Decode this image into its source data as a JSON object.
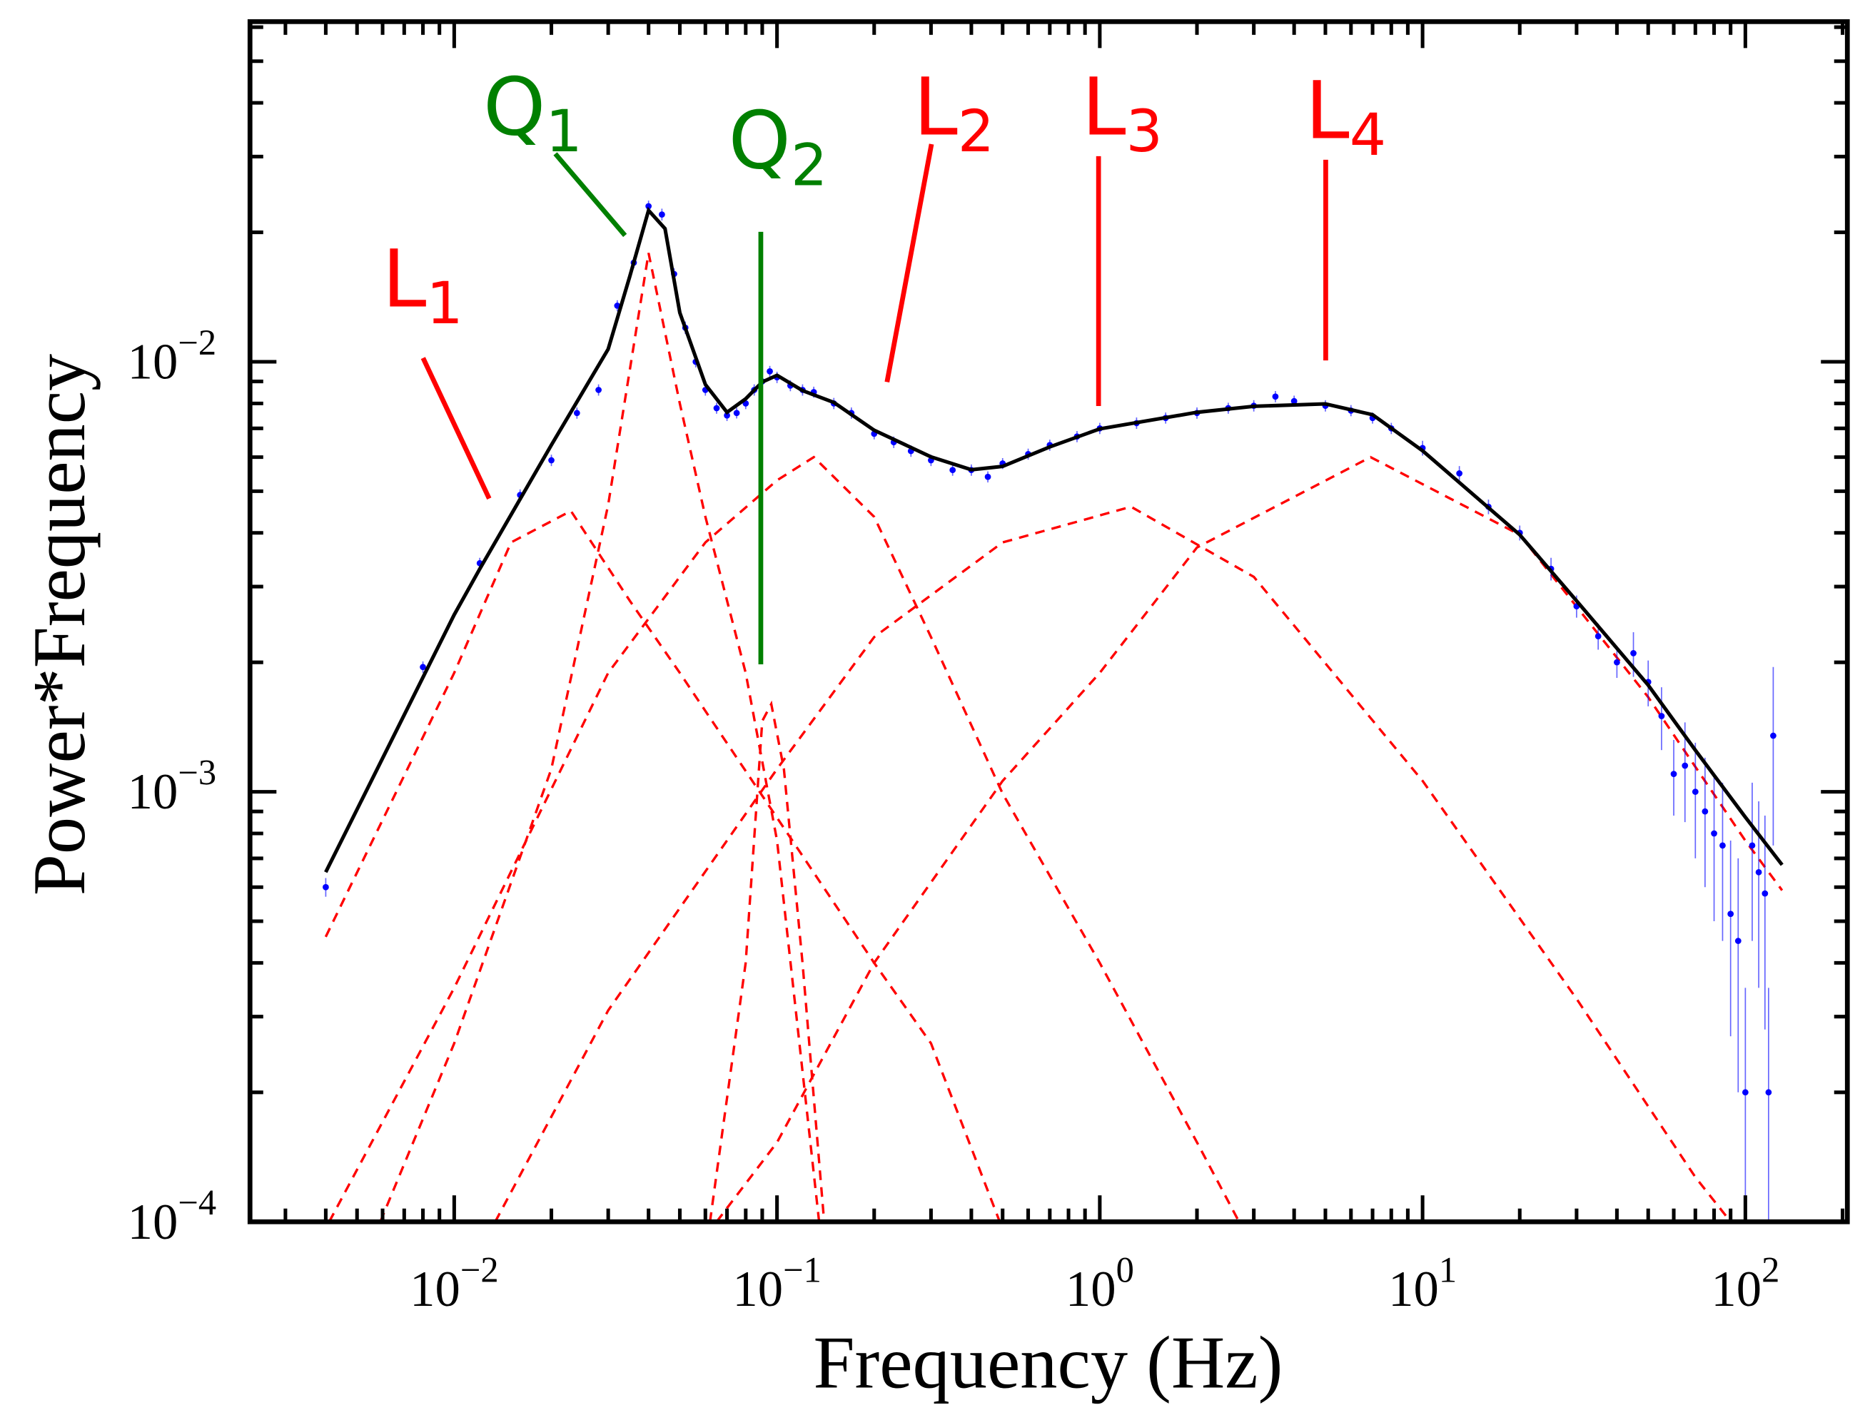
{
  "chart_data": {
    "type": "log-spectrum",
    "xlabel": "Frequency (Hz)",
    "ylabel": "Power*Frequency",
    "xscale": "log",
    "yscale": "log",
    "xlim": [
      0.00233,
      207
    ],
    "ylim": [
      0.0001,
      0.0618
    ],
    "xticks": [
      {
        "value": 0.01,
        "label": "10−2"
      },
      {
        "value": 0.1,
        "label": "10−1"
      },
      {
        "value": 1,
        "label": "100"
      },
      {
        "value": 10,
        "label": "101"
      },
      {
        "value": 100,
        "label": "102"
      }
    ],
    "yticks": [
      {
        "value": 0.0001,
        "label": "10−4"
      },
      {
        "value": 0.001,
        "label": "10−3"
      },
      {
        "value": 0.01,
        "label": "10−2"
      }
    ],
    "xminorticks": [
      0.003,
      0.004,
      0.005,
      0.006,
      0.007,
      0.008,
      0.009,
      0.02,
      0.03,
      0.04,
      0.05,
      0.06,
      0.07,
      0.08,
      0.09,
      0.2,
      0.3,
      0.4,
      0.5,
      0.6,
      0.7,
      0.8,
      0.9,
      2,
      3,
      4,
      5,
      6,
      7,
      8,
      9,
      20,
      30,
      40,
      50,
      60,
      70,
      80,
      90,
      200
    ],
    "yminorticks": [
      0.0002,
      0.0003,
      0.0004,
      0.0005,
      0.0006,
      0.0007,
      0.0008,
      0.0009,
      0.002,
      0.003,
      0.004,
      0.005,
      0.006,
      0.007,
      0.008,
      0.009,
      0.02,
      0.03,
      0.04,
      0.05,
      0.06
    ],
    "model": {
      "color": "#000000",
      "x": [
        0.004,
        0.01,
        0.012,
        0.02,
        0.03,
        0.035,
        0.04,
        0.045,
        0.05,
        0.06,
        0.07,
        0.08,
        0.09,
        0.1,
        0.12,
        0.15,
        0.2,
        0.3,
        0.4,
        0.5,
        0.7,
        1,
        2,
        3,
        5,
        7,
        10,
        20,
        30,
        50,
        70,
        100,
        130
      ],
      "values": [
        0.00065,
        0.00258,
        0.0033,
        0.0064,
        0.0107,
        0.0158,
        0.0225,
        0.0204,
        0.013,
        0.00885,
        0.00763,
        0.0082,
        0.00897,
        0.0093,
        0.00857,
        0.00804,
        0.00693,
        0.00601,
        0.00561,
        0.00571,
        0.00634,
        0.00698,
        0.00763,
        0.00788,
        0.00798,
        0.00753,
        0.00621,
        0.00396,
        0.00278,
        0.00177,
        0.00125,
        0.000873,
        0.000676
      ]
    },
    "components": [
      {
        "color": "#ff0000",
        "x": [
          0.004,
          0.01,
          0.015,
          0.023,
          0.035,
          0.05,
          0.1,
          0.2,
          0.3,
          0.49
        ],
        "values": [
          0.00046,
          0.00189,
          0.0038,
          0.0045,
          0.00278,
          0.00189,
          0.00087,
          0.0004,
          0.00026,
          0.0001
        ]
      },
      {
        "color": "#ff0000",
        "x": [
          0.0059,
          0.01,
          0.02,
          0.03,
          0.04,
          0.05,
          0.06,
          0.08,
          0.1,
          0.135
        ],
        "values": [
          0.0001,
          0.00026,
          0.00113,
          0.00465,
          0.0179,
          0.008,
          0.00436,
          0.00189,
          0.00077,
          0.0001
        ]
      },
      {
        "color": "#ff0000",
        "x": [
          0.062,
          0.08,
          0.09,
          0.096,
          0.105,
          0.12,
          0.14
        ],
        "values": [
          0.0001,
          0.0004,
          0.00146,
          0.0016,
          0.00113,
          0.0004,
          0.0001
        ]
      },
      {
        "color": "#ff0000",
        "x": [
          0.0041,
          0.01,
          0.03,
          0.06,
          0.1,
          0.13,
          0.2,
          0.3,
          0.5,
          1,
          2,
          2.7
        ],
        "values": [
          0.0001,
          0.00035,
          0.00189,
          0.0038,
          0.0053,
          0.006,
          0.00436,
          0.00229,
          0.00099,
          0.0004,
          0.000153,
          0.0001
        ]
      },
      {
        "color": "#ff0000",
        "x": [
          0.0134,
          0.03,
          0.1,
          0.2,
          0.5,
          1.25,
          3,
          10,
          30,
          70,
          90
        ],
        "values": [
          0.0001,
          0.00031,
          0.00113,
          0.00229,
          0.0038,
          0.0046,
          0.00316,
          0.00106,
          0.00033,
          0.000127,
          0.0001
        ]
      },
      {
        "color": "#ff0000",
        "x": [
          0.065,
          0.1,
          0.2,
          0.5,
          1,
          2,
          6.9,
          20,
          50,
          100,
          130
        ],
        "values": [
          0.0001,
          0.000153,
          0.0004,
          0.00106,
          0.00189,
          0.0037,
          0.006,
          0.00396,
          0.00166,
          0.00077,
          0.00059
        ]
      }
    ],
    "data": {
      "color": "#0000ff",
      "x": [
        0.004,
        0.008,
        0.012,
        0.016,
        0.02,
        0.024,
        0.028,
        0.032,
        0.036,
        0.04,
        0.044,
        0.048,
        0.052,
        0.056,
        0.06,
        0.065,
        0.07,
        0.075,
        0.08,
        0.085,
        0.09,
        0.095,
        0.1,
        0.11,
        0.12,
        0.13,
        0.15,
        0.17,
        0.2,
        0.23,
        0.26,
        0.3,
        0.35,
        0.4,
        0.45,
        0.5,
        0.6,
        0.7,
        0.85,
        1,
        1.3,
        1.6,
        2,
        2.5,
        3,
        3.5,
        4,
        5,
        6,
        7,
        8,
        10,
        13,
        16,
        20,
        25,
        30,
        35,
        40,
        45,
        50,
        55,
        60,
        65,
        70,
        75,
        80,
        85,
        90,
        95,
        100,
        105,
        110,
        115,
        118,
        122
      ],
      "values": [
        0.0006,
        0.00195,
        0.0034,
        0.0049,
        0.0059,
        0.0076,
        0.0086,
        0.0135,
        0.017,
        0.023,
        0.022,
        0.016,
        0.012,
        0.01,
        0.0086,
        0.0078,
        0.0075,
        0.0076,
        0.008,
        0.0086,
        0.009,
        0.0095,
        0.0092,
        0.0088,
        0.0086,
        0.0085,
        0.008,
        0.0076,
        0.0068,
        0.0065,
        0.0062,
        0.0059,
        0.0056,
        0.0056,
        0.0054,
        0.0058,
        0.0061,
        0.0064,
        0.0067,
        0.007,
        0.0072,
        0.0074,
        0.0076,
        0.0078,
        0.0079,
        0.0083,
        0.0081,
        0.0079,
        0.0077,
        0.0074,
        0.007,
        0.0063,
        0.0055,
        0.0046,
        0.004,
        0.0033,
        0.0027,
        0.0023,
        0.002,
        0.0021,
        0.0018,
        0.0015,
        0.0011,
        0.00115,
        0.001,
        0.0009,
        0.0008,
        0.00075,
        0.00052,
        0.00045,
        0.0002,
        0.00075,
        0.00065,
        0.00058,
        0.0002,
        0.00135
      ],
      "errors": [
        3e-05,
        6e-05,
        0.0001,
        0.00015,
        0.00018,
        0.00023,
        0.00026,
        0.0004,
        0.0005,
        0.0007,
        0.0007,
        0.0005,
        0.0004,
        0.0003,
        0.00026,
        0.00023,
        0.00022,
        0.00022,
        0.00024,
        0.00026,
        0.00027,
        0.00028,
        0.00028,
        0.00026,
        0.00026,
        0.00025,
        0.00024,
        0.00023,
        0.0002,
        0.0002,
        0.00019,
        0.00018,
        0.00017,
        0.00017,
        0.00016,
        0.00017,
        0.00018,
        0.00019,
        0.0002,
        0.00021,
        0.00022,
        0.00022,
        0.00023,
        0.00023,
        0.00024,
        0.00025,
        0.00024,
        0.00024,
        0.00023,
        0.00022,
        0.00021,
        0.00025,
        0.00022,
        0.00018,
        0.00016,
        0.0002,
        0.00016,
        0.00016,
        0.00016,
        0.00025,
        0.00022,
        0.00025,
        0.00022,
        0.0003,
        0.0003,
        0.0003,
        0.0003,
        0.0003,
        0.00025,
        0.00025,
        0.00015,
        0.0003,
        0.0003,
        0.0003,
        0.00015,
        0.0006
      ]
    },
    "annotations": [
      {
        "text": "L",
        "sub": "1",
        "color": "#ff0000"
      },
      {
        "text": "Q",
        "sub": "1",
        "color": "#008000"
      },
      {
        "text": "Q",
        "sub": "2",
        "color": "#008000"
      },
      {
        "text": "L",
        "sub": "2",
        "color": "#ff0000"
      },
      {
        "text": "L",
        "sub": "3",
        "color": "#ff0000"
      },
      {
        "text": "L",
        "sub": "4",
        "color": "#ff0000"
      }
    ]
  }
}
